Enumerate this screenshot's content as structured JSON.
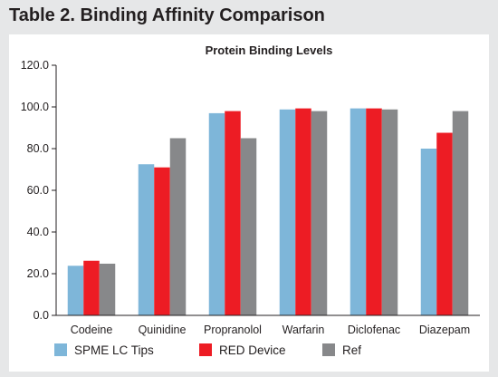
{
  "figure": {
    "title": "Table 2. Binding Affinity Comparison"
  },
  "chart_data": {
    "type": "bar",
    "title": "Protein Binding Levels",
    "xlabel": "",
    "ylabel": "",
    "ylim": [
      0,
      120
    ],
    "yticks": [
      "0.0",
      "20.0",
      "40.0",
      "60.0",
      "80.0",
      "100.0",
      "120.0"
    ],
    "grid": false,
    "legend_position": "bottom",
    "categories": [
      "Codeine",
      "Quinidine",
      "Propranolol",
      "Warfarin",
      "Diclofenac",
      "Diazepam"
    ],
    "series": [
      {
        "name": "SPME LC Tips",
        "color": "#7eb6d9",
        "values": [
          23.8,
          72.5,
          97.0,
          98.8,
          99.3,
          80.0
        ]
      },
      {
        "name": "RED Device",
        "color": "#ed1c24",
        "values": [
          26.2,
          71.0,
          98.0,
          99.3,
          99.3,
          87.6
        ]
      },
      {
        "name": "Ref",
        "color": "#87888a",
        "values": [
          24.8,
          85.0,
          85.0,
          98.0,
          98.8,
          98.0
        ]
      }
    ]
  }
}
